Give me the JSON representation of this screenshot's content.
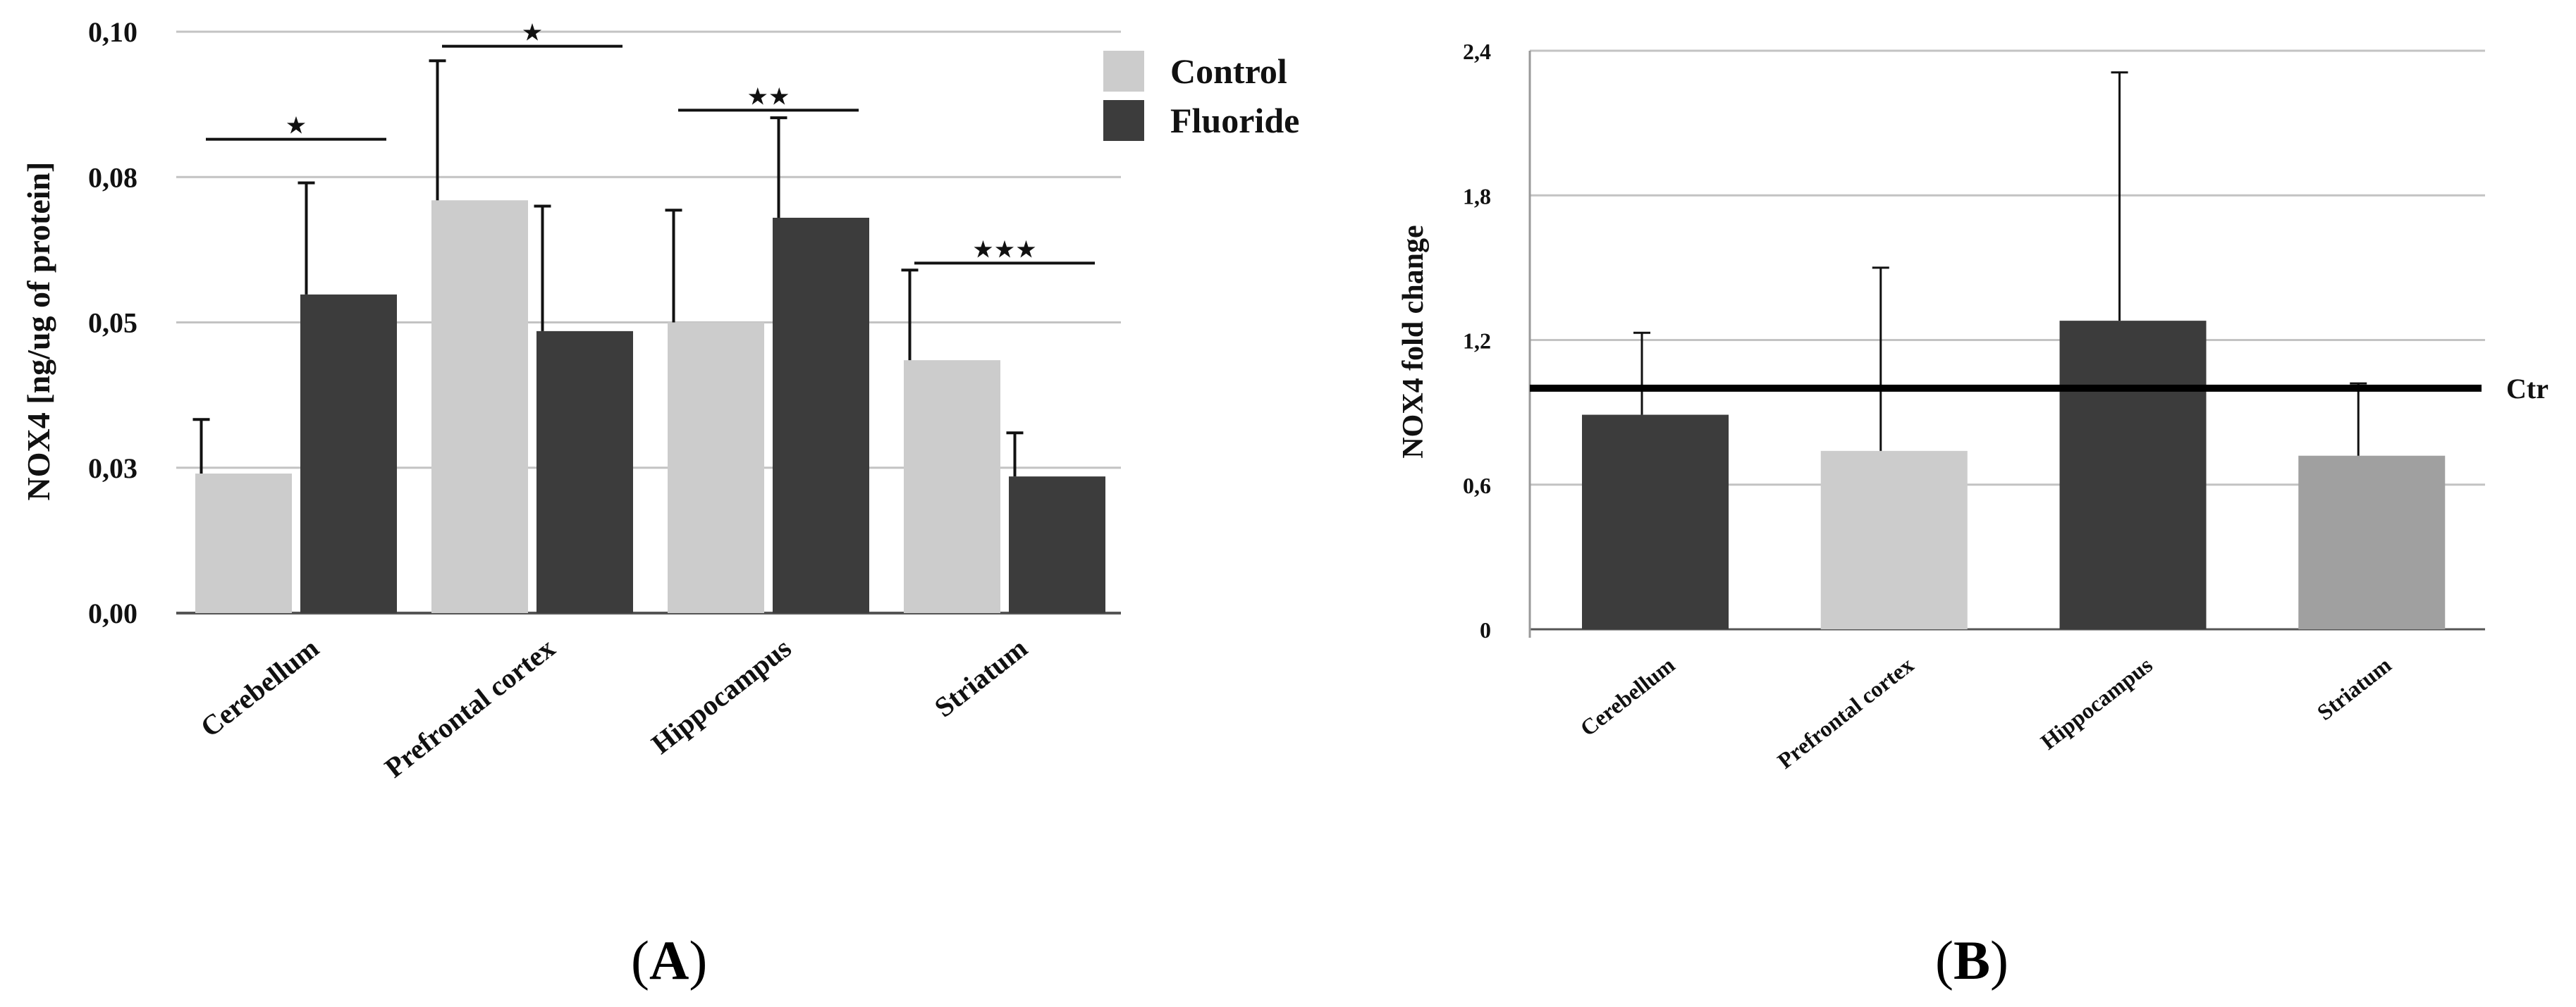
{
  "colors": {
    "control": "#cccccc",
    "fluoride": "#3c3c3c",
    "striatum_b": "#a0a0a0",
    "grid": "#c3c3c3",
    "axis": "#555555",
    "text": "#111111"
  },
  "panel_labels": {
    "a": "A",
    "b": "B"
  },
  "chart_data": [
    {
      "id": "A",
      "type": "bar",
      "title": "",
      "ylabel": "NOX4  [ng/ug of protein]",
      "xlabel": "",
      "ylim": [
        0,
        0.1
      ],
      "yticks": [
        0,
        0.025,
        0.05,
        0.075,
        0.1
      ],
      "ytick_labels": [
        "0,00",
        "0,03",
        "0,05",
        "0,08",
        "0,10"
      ],
      "categories": [
        "Cerebellum",
        "Prefrontal cortex",
        "Hippocampus",
        "Striatum"
      ],
      "series": [
        {
          "name": "Control",
          "color_key": "control",
          "values": [
            0.024,
            0.071,
            0.05,
            0.0435
          ],
          "errors": [
            0.0093,
            0.024,
            0.0193,
            0.0155
          ]
        },
        {
          "name": "Fluoride",
          "color_key": "fluoride",
          "values": [
            0.0548,
            0.0485,
            0.068,
            0.0235
          ],
          "errors": [
            0.0192,
            0.0215,
            0.0172,
            0.0075
          ]
        }
      ],
      "legend": {
        "position": "top-right",
        "entries": [
          "Control",
          "Fluoride"
        ]
      },
      "significance": [
        "★",
        "★",
        "★★",
        "★★★"
      ],
      "significance_levels": [
        0.0815,
        0.0975,
        0.0865,
        0.0602
      ]
    },
    {
      "id": "B",
      "type": "bar",
      "title": "",
      "ylabel": "NOX4 fold change",
      "xlabel": "",
      "ylim": [
        0,
        2.4
      ],
      "yticks": [
        0,
        0.6,
        1.2,
        1.8,
        2.4
      ],
      "ytick_labels": [
        "0",
        "0,6",
        "1,2",
        "1,8",
        "2,4"
      ],
      "categories": [
        "Cerebellum",
        "Prefrontal cortex",
        "Hippocampus",
        "Striatum"
      ],
      "values": [
        0.89,
        0.74,
        1.28,
        0.72
      ],
      "errors": [
        0.34,
        0.76,
        1.03,
        0.3
      ],
      "bar_color_keys": [
        "fluoride",
        "control",
        "fluoride",
        "striatum_b"
      ],
      "reference_line": {
        "value": 1.0,
        "label": "Ctr"
      }
    }
  ]
}
